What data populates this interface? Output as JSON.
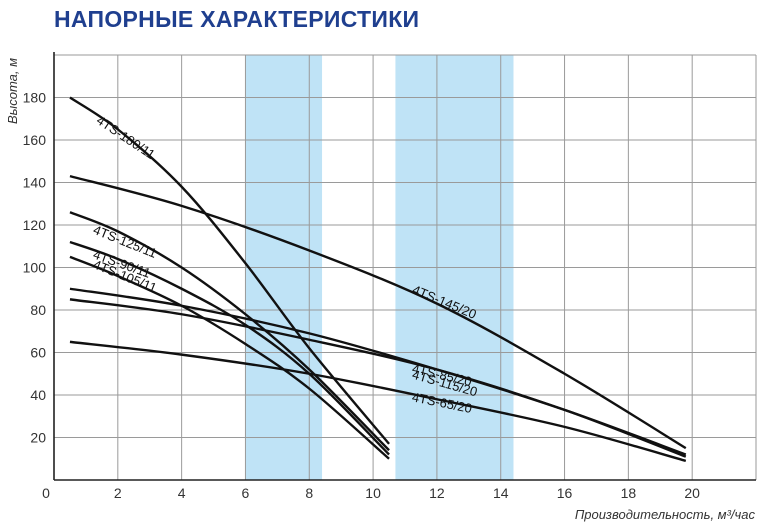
{
  "chart_data": {
    "type": "line",
    "title": "НАПОРНЫЕ ХАРАКТЕРИСТИКИ",
    "xlabel": "Производительность, м³/час",
    "ylabel": "Высота, м",
    "xlim": [
      0,
      22
    ],
    "ylim": [
      0,
      200
    ],
    "x_ticks": [
      0,
      2,
      4,
      6,
      8,
      10,
      12,
      14,
      16,
      18,
      20
    ],
    "y_ticks": [
      20,
      40,
      60,
      80,
      100,
      120,
      140,
      160,
      180
    ],
    "grid": true,
    "highlight_bands": [
      {
        "x": [
          6,
          8.4
        ],
        "color": "#bfe3f6"
      },
      {
        "x": [
          10.7,
          14.4
        ],
        "color": "#bfe3f6"
      }
    ],
    "series": [
      {
        "name": "4TS-180/11",
        "x": [
          0.5,
          2,
          4,
          6,
          8,
          10.5
        ],
        "y": [
          180,
          165,
          138,
          102,
          62,
          17
        ]
      },
      {
        "name": "4TS-125/11",
        "x": [
          0.5,
          2,
          4,
          6,
          8,
          10.5
        ],
        "y": [
          126,
          117,
          100,
          78,
          52,
          14
        ]
      },
      {
        "name": "4TS-105/11",
        "x": [
          0.5,
          2,
          4,
          6,
          8,
          10.5
        ],
        "y": [
          105,
          96,
          82,
          64,
          43,
          10
        ]
      },
      {
        "name": "4TS-90/11",
        "x": [
          0.5,
          2,
          4,
          6,
          8,
          10.5
        ],
        "y": [
          112,
          104,
          90,
          73,
          50,
          12
        ]
      },
      {
        "name": "4TS-145/20",
        "x": [
          0.5,
          4,
          8,
          12,
          16,
          19.8
        ],
        "y": [
          143,
          129,
          108,
          83,
          50,
          15
        ]
      },
      {
        "name": "4TS-115/20",
        "x": [
          0.5,
          4,
          8,
          12,
          16,
          19.8
        ],
        "y": [
          90,
          82,
          69,
          52,
          33,
          12
        ]
      },
      {
        "name": "4TS-85/20",
        "x": [
          0.5,
          4,
          8,
          12,
          16,
          19.8
        ],
        "y": [
          85,
          78,
          66,
          52,
          33,
          11
        ]
      },
      {
        "name": "4TS-65/20",
        "x": [
          0.5,
          4,
          8,
          12,
          16,
          19.8
        ],
        "y": [
          65,
          59,
          50,
          38,
          25,
          9
        ]
      }
    ],
    "series_label_positions": {
      "4TS-180/11": "upper-left",
      "4TS-125/11": "left",
      "4TS-105/11": "left",
      "4TS-90/11": "left",
      "4TS-145/20": "right",
      "4TS-115/20": "right",
      "4TS-85/20": "right",
      "4TS-65/20": "right"
    },
    "colors": {
      "title": "#1f3f8f",
      "band": "#bfe3f6",
      "grid": "#9a9a9a",
      "line": "#111111"
    }
  }
}
